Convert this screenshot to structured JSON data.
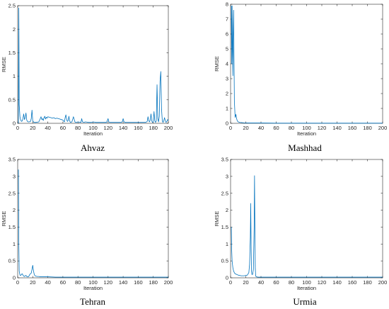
{
  "colors": {
    "line": "#0072BD",
    "axis": "#262626",
    "background": "#ffffff"
  },
  "chart_data": [
    {
      "type": "line",
      "caption": "Ahvaz",
      "xlabel": "Iteration",
      "ylabel": "RMSE",
      "xlim": [
        0,
        200
      ],
      "ylim": [
        0,
        2.5
      ],
      "xticks": [
        "0",
        "20",
        "40",
        "60",
        "80",
        "100",
        "120",
        "140",
        "160",
        "180",
        "200"
      ],
      "yticks": [
        "0",
        "0.5",
        "1",
        "1.5",
        "2",
        "2.5"
      ],
      "grid": false,
      "series": [
        {
          "x": [
            1,
            1.5,
            2,
            3,
            4,
            5,
            6,
            7,
            8,
            9,
            10,
            11,
            12,
            13,
            14,
            15,
            17,
            18,
            19,
            20,
            21,
            22,
            24,
            28,
            30,
            31,
            32,
            33,
            34,
            35,
            36,
            37,
            38,
            39,
            40,
            42,
            44,
            46,
            48,
            50,
            52,
            54,
            56,
            58,
            60,
            62,
            63,
            64,
            65,
            66,
            67,
            68,
            69,
            70,
            72,
            74,
            76,
            77,
            78,
            80,
            84,
            85,
            86,
            88,
            90,
            94,
            98,
            100,
            104,
            108,
            112,
            116,
            118,
            119,
            120,
            121,
            122,
            126,
            130,
            134,
            138,
            139,
            140,
            141,
            142,
            146,
            150,
            154,
            158,
            162,
            166,
            170,
            172,
            173,
            174,
            175,
            176,
            177,
            178,
            179,
            180,
            181,
            182,
            183,
            184,
            185,
            186,
            187,
            188,
            189,
            190,
            191,
            192,
            193,
            194,
            195,
            196,
            197,
            198,
            199,
            200
          ],
          "y": [
            0,
            2.45,
            0.4,
            0.14,
            0.07,
            0.04,
            0.05,
            0.1,
            0.2,
            0.08,
            0.12,
            0.22,
            0.07,
            0.04,
            0.03,
            0.03,
            0.04,
            0.1,
            0.28,
            0.05,
            0.03,
            0.02,
            0.02,
            0.03,
            0.1,
            0.14,
            0.08,
            0.1,
            0.06,
            0.12,
            0.15,
            0.09,
            0.13,
            0.11,
            0.14,
            0.13,
            0.12,
            0.11,
            0.12,
            0.1,
            0.11,
            0.1,
            0.09,
            0.08,
            0.07,
            0.03,
            0.12,
            0.18,
            0.08,
            0.04,
            0.06,
            0.15,
            0.05,
            0.02,
            0.03,
            0.14,
            0.03,
            0.02,
            0.02,
            0.03,
            0.02,
            0.1,
            0.03,
            0.02,
            0.03,
            0.02,
            0.02,
            0.03,
            0.02,
            0.02,
            0.02,
            0.02,
            0.02,
            0.06,
            0.1,
            0.03,
            0.02,
            0.02,
            0.02,
            0.02,
            0.02,
            0.04,
            0.1,
            0.04,
            0.02,
            0.02,
            0.02,
            0.02,
            0.02,
            0.02,
            0.02,
            0.02,
            0.04,
            0.14,
            0.06,
            0.03,
            0.07,
            0.2,
            0.05,
            0.02,
            0.03,
            0.25,
            0.05,
            0.02,
            0.05,
            0.82,
            0.1,
            0.03,
            0.15,
            0.9,
            1.1,
            0.3,
            0.05,
            0.02,
            0.06,
            0.12,
            0.05,
            0.02,
            0.04,
            0.08,
            0.06
          ]
        }
      ]
    },
    {
      "type": "line",
      "caption": "Mashhad",
      "xlabel": "Iteration",
      "ylabel": "RMSE",
      "xlim": [
        0,
        200
      ],
      "ylim": [
        0,
        8
      ],
      "xticks": [
        "0",
        "20",
        "40",
        "60",
        "80",
        "100",
        "120",
        "140",
        "160",
        "180",
        "200"
      ],
      "yticks": [
        "0",
        "1",
        "2",
        "3",
        "4",
        "5",
        "6",
        "7",
        "8"
      ],
      "grid": false,
      "series": [
        {
          "x": [
            1,
            1.5,
            2,
            2.5,
            3,
            3.5,
            4,
            5,
            6,
            7,
            8,
            9,
            10,
            12,
            14,
            16,
            18,
            20,
            25,
            30,
            40,
            60,
            100,
            150,
            200
          ],
          "y": [
            7.9,
            4.0,
            7.9,
            5.0,
            3.2,
            6.0,
            7.6,
            1.5,
            0.4,
            0.6,
            0.3,
            0.15,
            0.1,
            0.06,
            0.05,
            0.04,
            0.03,
            0.03,
            0.02,
            0.02,
            0.02,
            0.01,
            0.01,
            0.01,
            0.01
          ]
        }
      ]
    },
    {
      "type": "line",
      "caption": "Tehran",
      "xlabel": "Iteration",
      "ylabel": "RMSE",
      "xlim": [
        0,
        200
      ],
      "ylim": [
        0,
        3.5
      ],
      "xticks": [
        "0",
        "20",
        "40",
        "60",
        "80",
        "100",
        "120",
        "140",
        "160",
        "180",
        "200"
      ],
      "yticks": [
        "0",
        "0.5",
        "1",
        "1.5",
        "2",
        "2.5",
        "3",
        "3.5"
      ],
      "grid": false,
      "series": [
        {
          "x": [
            1,
            1.5,
            2,
            3,
            4,
            5,
            6,
            7,
            8,
            9,
            10,
            11,
            12,
            13,
            14,
            15,
            16,
            17,
            18,
            19,
            20,
            21,
            22,
            23,
            24,
            26,
            28,
            30,
            35,
            40,
            50,
            60,
            80,
            100,
            150,
            200
          ],
          "y": [
            3.2,
            1.0,
            0.2,
            0.08,
            0.07,
            0.1,
            0.12,
            0.08,
            0.05,
            0.04,
            0.06,
            0.07,
            0.04,
            0.03,
            0.03,
            0.05,
            0.1,
            0.12,
            0.14,
            0.25,
            0.37,
            0.2,
            0.1,
            0.06,
            0.05,
            0.04,
            0.04,
            0.03,
            0.03,
            0.03,
            0.02,
            0.02,
            0.02,
            0.02,
            0.02,
            0.02
          ]
        }
      ]
    },
    {
      "type": "line",
      "caption": "Urmia",
      "xlabel": "Iteration",
      "ylabel": "RMSE",
      "xlim": [
        0,
        200
      ],
      "ylim": [
        0,
        3.5
      ],
      "xticks": [
        "0",
        "20",
        "40",
        "60",
        "80",
        "100",
        "120",
        "140",
        "160",
        "180",
        "200"
      ],
      "yticks": [
        "0",
        "0.5",
        "1",
        "1.5",
        "2",
        "2.5",
        "3",
        "3.5"
      ],
      "grid": false,
      "series": [
        {
          "x": [
            1,
            1.5,
            2,
            3,
            4,
            5,
            6,
            8,
            10,
            12,
            14,
            16,
            18,
            20,
            22,
            24,
            25,
            26,
            26.5,
            27,
            27.5,
            28,
            29,
            30,
            31,
            31.5,
            32,
            32.5,
            33,
            34,
            36,
            40,
            60,
            100,
            150,
            200
          ],
          "y": [
            1.5,
            0.8,
            0.5,
            0.3,
            0.2,
            0.15,
            0.12,
            0.1,
            0.08,
            0.07,
            0.06,
            0.06,
            0.06,
            0.07,
            0.08,
            0.15,
            0.4,
            1.2,
            2.2,
            1.0,
            0.2,
            0.1,
            0.1,
            0.25,
            1.5,
            3.02,
            1.5,
            0.3,
            0.05,
            0.03,
            0.02,
            0.02,
            0.02,
            0.02,
            0.02,
            0.02
          ]
        }
      ]
    }
  ]
}
